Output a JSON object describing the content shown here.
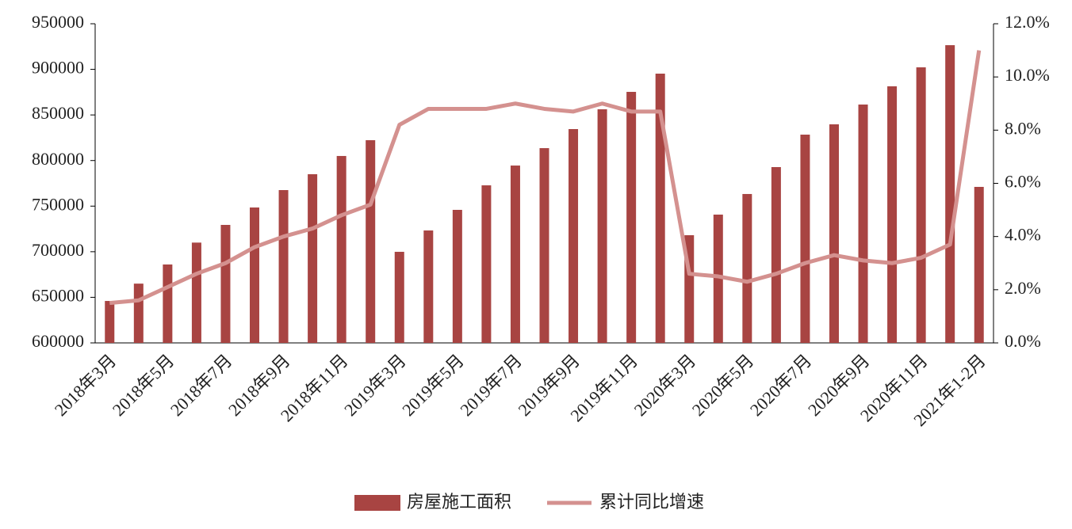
{
  "chart_data": {
    "type": "bar-line",
    "categories": [
      "2018年3月",
      null,
      "2018年5月",
      null,
      "2018年7月",
      null,
      "2018年9月",
      null,
      "2018年11月",
      null,
      "2019年3月",
      null,
      "2019年5月",
      null,
      "2019年7月",
      null,
      "2019年9月",
      null,
      "2019年11月",
      null,
      "2020年3月",
      null,
      "2020年5月",
      null,
      "2020年7月",
      null,
      "2020年9月",
      null,
      "2020年11月",
      null,
      "2021年1-2月"
    ],
    "series": [
      {
        "name": "房屋施工面积",
        "type": "bar",
        "color": "#a84442",
        "values": [
          646000,
          665000,
          686000,
          710000,
          729400,
          748500,
          767600,
          785000,
          805000,
          822300,
          699900,
          723300,
          745900,
          772800,
          794500,
          813600,
          834500,
          856200,
          875300,
          895300,
          718100,
          740700,
          763300,
          792800,
          828400,
          839700,
          861400,
          881400,
          902200,
          926500,
          771100
        ]
      },
      {
        "name": "累计同比增速",
        "type": "line",
        "axis": "y2",
        "color": "#d4918f",
        "values": [
          1.5,
          1.6,
          2.1,
          2.6,
          3.0,
          3.6,
          4.0,
          4.3,
          4.8,
          5.2,
          8.2,
          8.8,
          8.8,
          8.8,
          9.0,
          8.8,
          8.7,
          9.0,
          8.7,
          8.7,
          2.6,
          2.5,
          2.3,
          2.6,
          3.0,
          3.3,
          3.1,
          3.0,
          3.2,
          3.7,
          11.0
        ]
      }
    ],
    "ylim": [
      600000,
      950000
    ],
    "yticks": [
      600000,
      650000,
      700000,
      750000,
      800000,
      850000,
      900000,
      950000
    ],
    "y2lim": [
      0,
      12
    ],
    "y2ticks": [
      {
        "value": 0,
        "label": "0.0%"
      },
      {
        "value": 2,
        "label": "2.0%"
      },
      {
        "value": 4,
        "label": "4.0%"
      },
      {
        "value": 6,
        "label": "6.0%"
      },
      {
        "value": 8,
        "label": "8.0%"
      },
      {
        "value": 10,
        "label": "10.0%"
      },
      {
        "value": 12,
        "label": "12.0%"
      }
    ],
    "legend": "bottom"
  }
}
